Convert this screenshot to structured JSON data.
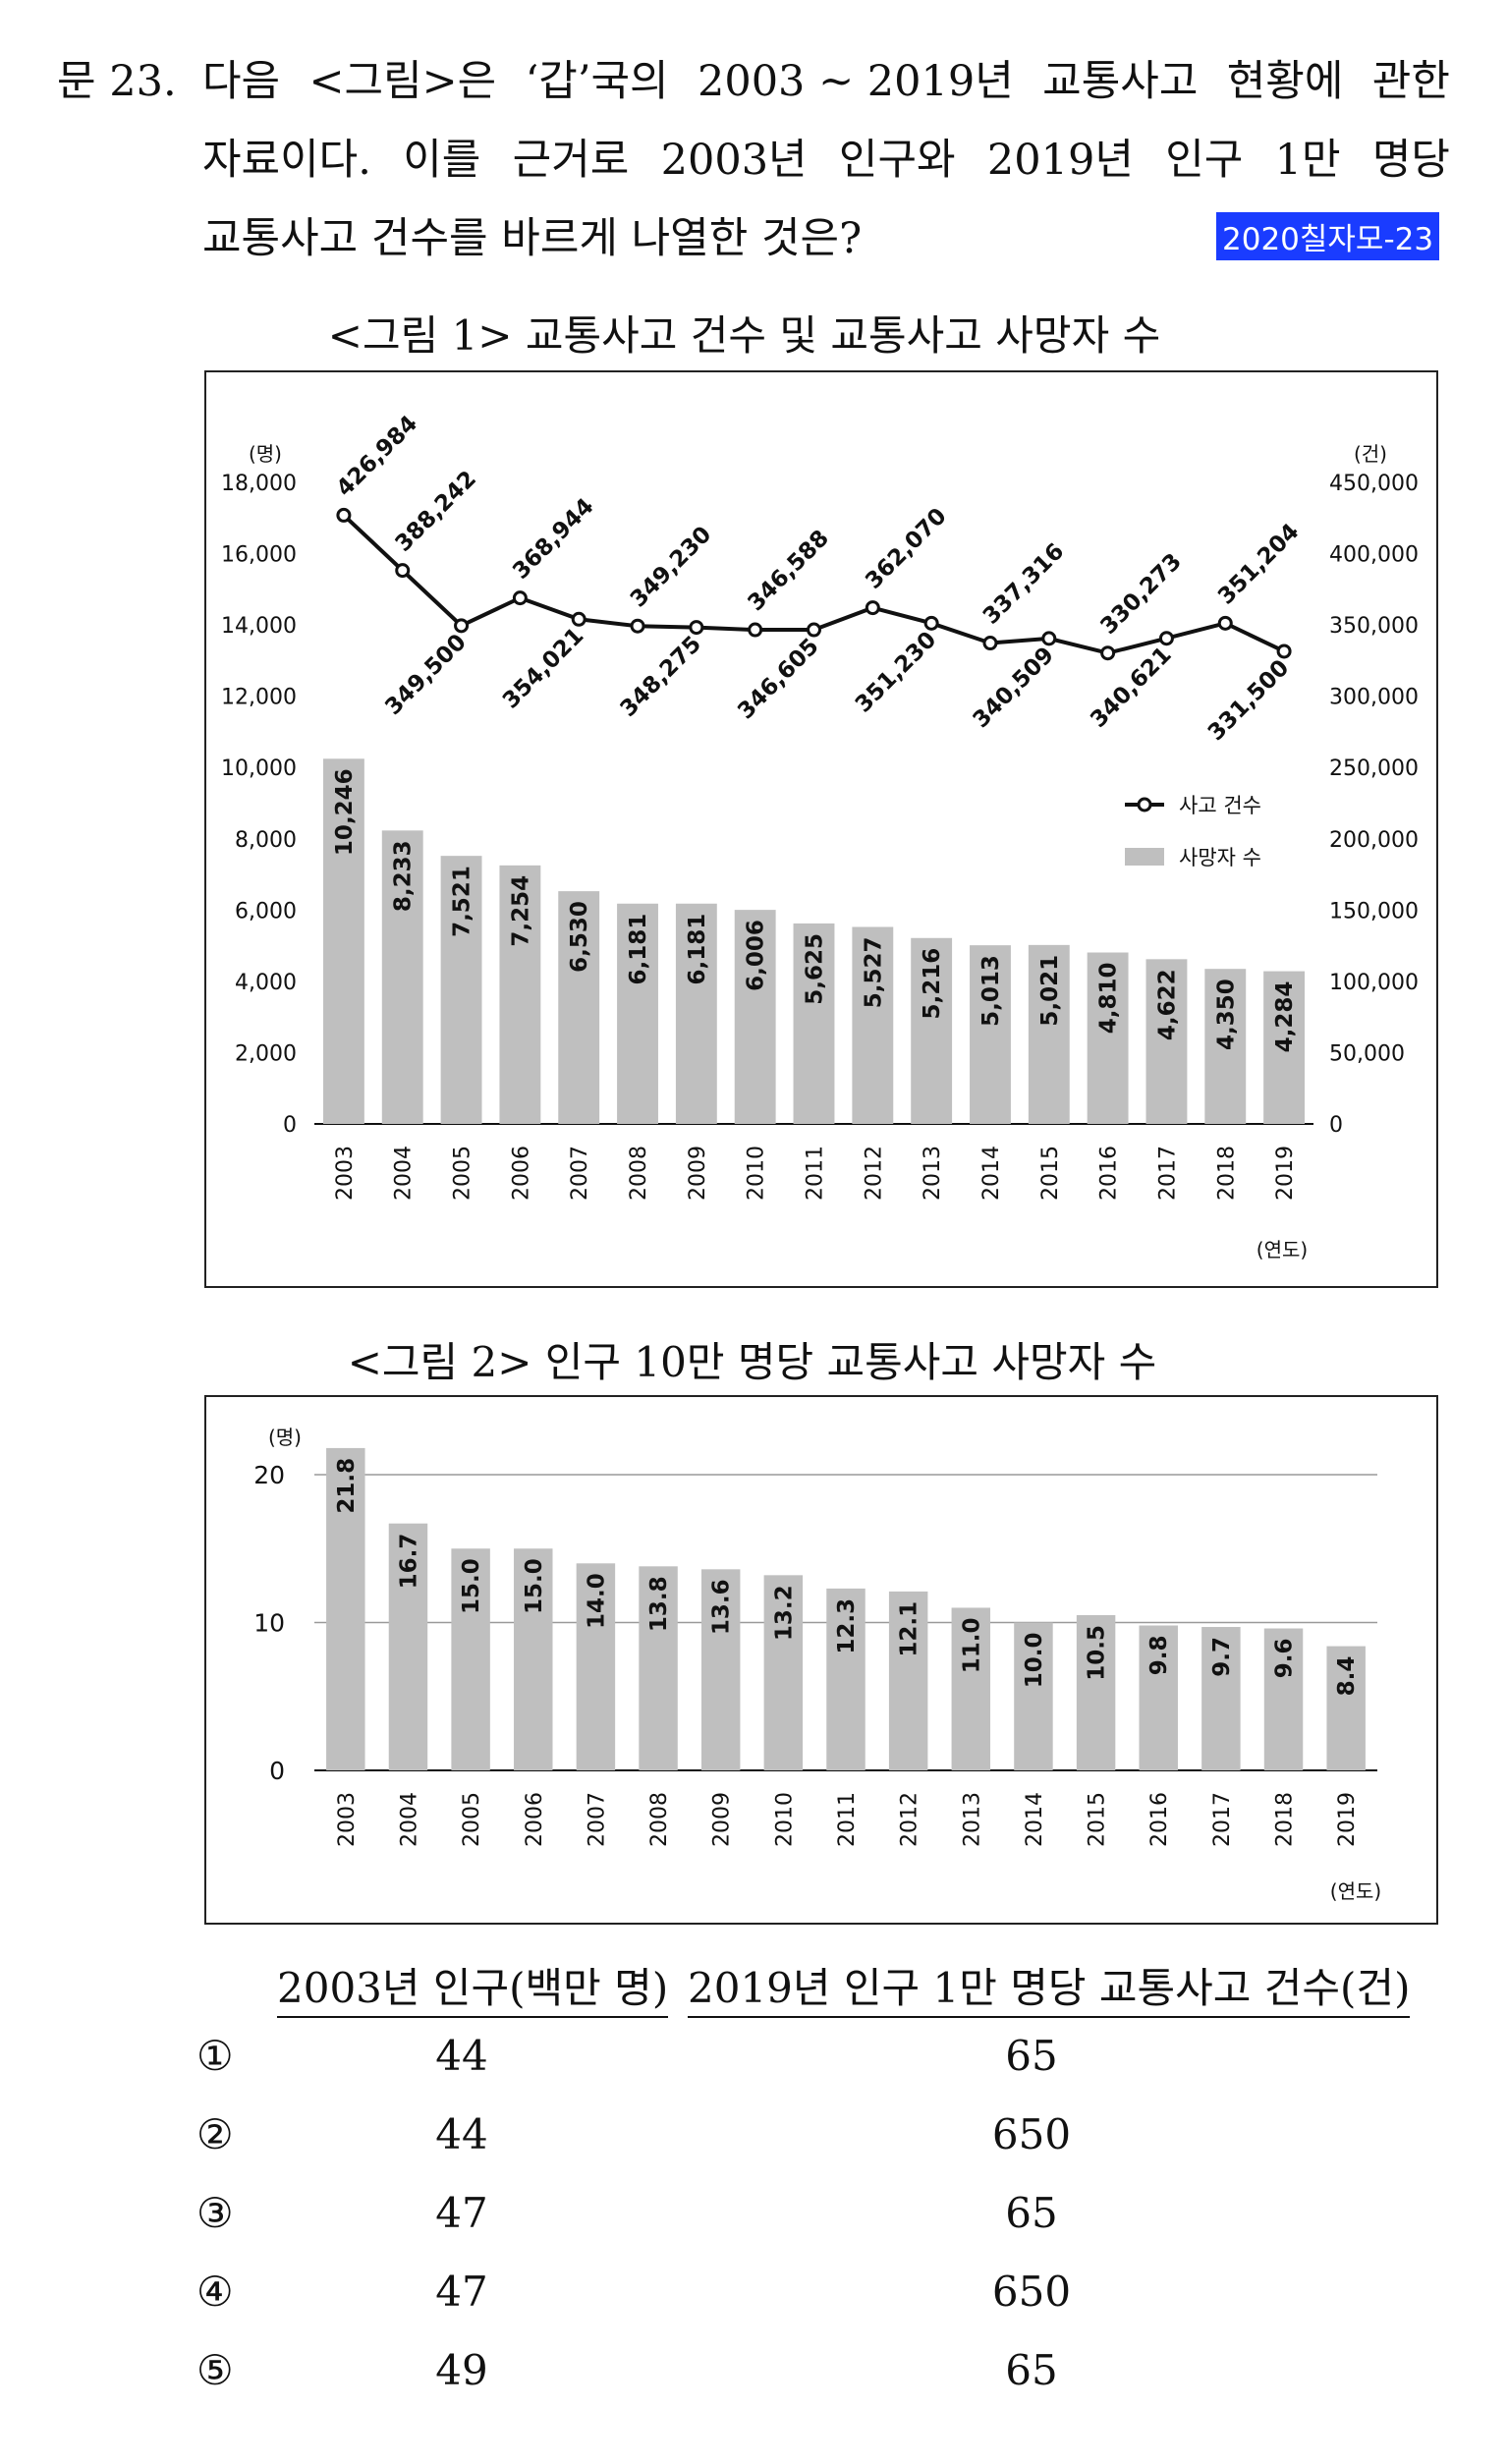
{
  "question": {
    "number": "문 23.",
    "line1": [
      "다음",
      "<그림>은",
      "‘갑’국의",
      "2003 ~ 2019년",
      "교통사고",
      "현황에",
      "관한"
    ],
    "line2": [
      "자료이다.",
      "이를",
      "근거로",
      "2003년",
      "인구와",
      "2019년",
      "인구",
      "1만",
      "명당"
    ],
    "line3": "교통사고 건수를 바르게 나열한 것은?",
    "tag": "2020칠자모-23"
  },
  "figure1": {
    "title": "<그림 1> 교통사고 건수 및 교통사고 사망자 수"
  },
  "figure2": {
    "title": "<그림 2> 인구 10만 명당 교통사고 사망자 수"
  },
  "chart_data": [
    {
      "type": "bar+line",
      "title": "<그림 1> 교통사고 건수 및 교통사고 사망자 수",
      "xlabel": "(연도)",
      "ylabel_left": "(명)",
      "ylabel_right": "(건)",
      "categories": [
        "2003",
        "2004",
        "2005",
        "2006",
        "2007",
        "2008",
        "2009",
        "2010",
        "2011",
        "2012",
        "2013",
        "2014",
        "2015",
        "2016",
        "2017",
        "2018",
        "2019"
      ],
      "left_ticks": [
        "0",
        "2,000",
        "4,000",
        "6,000",
        "8,000",
        "10,000",
        "12,000",
        "14,000",
        "16,000",
        "18,000"
      ],
      "right_ticks": [
        "0",
        "50,000",
        "100,000",
        "150,000",
        "200,000",
        "250,000",
        "300,000",
        "350,000",
        "400,000",
        "450,000"
      ],
      "ylim_left": [
        0,
        18000
      ],
      "ylim_right": [
        0,
        450000
      ],
      "series": [
        {
          "name": "사망자 수",
          "type": "bar",
          "axis": "left",
          "color": "#bfbfbf",
          "values": [
            10246,
            8233,
            7521,
            7254,
            6530,
            6181,
            6181,
            6006,
            5625,
            5527,
            5216,
            5013,
            5021,
            4810,
            4622,
            4350,
            4284
          ],
          "labels": [
            "10,246",
            "8,233",
            "7,521",
            "7,254",
            "6,530",
            "6,181",
            "6,181",
            "6,006",
            "5,625",
            "5,527",
            "5,216",
            "5,013",
            "5,021",
            "4,810",
            "4,622",
            "4,350",
            "4,284"
          ]
        },
        {
          "name": "사고 건수",
          "type": "line",
          "axis": "right",
          "color": "#111111",
          "values": [
            426984,
            388242,
            349500,
            368944,
            354021,
            349230,
            348275,
            346588,
            346605,
            362070,
            351230,
            337316,
            340509,
            330273,
            340621,
            351204,
            331500
          ],
          "labels": [
            "426,984",
            "388,242",
            "349,500",
            "368,944",
            "354,021",
            "349,230",
            "348,275",
            "346,588",
            "346,605",
            "362,070",
            "351,230",
            "337,316",
            "340,509",
            "330,273",
            "340,621",
            "351,204",
            "331,500"
          ],
          "label_side": [
            "above",
            "above",
            "below",
            "above",
            "below",
            "above",
            "below",
            "above",
            "below",
            "above",
            "below",
            "above",
            "below",
            "above",
            "below",
            "above",
            "below"
          ]
        }
      ],
      "legend": [
        "사고 건수",
        "사망자 수"
      ],
      "legend_position": "right-middle",
      "grid": false
    },
    {
      "type": "bar",
      "title": "<그림 2> 인구 10만 명당 교통사고 사망자 수",
      "xlabel": "(연도)",
      "ylabel": "(명)",
      "categories": [
        "2003",
        "2004",
        "2005",
        "2006",
        "2007",
        "2008",
        "2009",
        "2010",
        "2011",
        "2012",
        "2013",
        "2014",
        "2015",
        "2016",
        "2017",
        "2018",
        "2019"
      ],
      "y_ticks": [
        "0",
        "10",
        "20"
      ],
      "ylim": [
        0,
        20
      ],
      "grid": true,
      "series": [
        {
          "name": "",
          "color": "#bfbfbf",
          "values": [
            21.8,
            16.7,
            15.0,
            15.0,
            14.0,
            13.8,
            13.6,
            13.2,
            12.3,
            12.1,
            11.0,
            10.0,
            10.5,
            9.8,
            9.7,
            9.6,
            8.4
          ],
          "labels": [
            "21.8",
            "16.7",
            "15.0",
            "15.0",
            "14.0",
            "13.8",
            "13.6",
            "13.2",
            "12.3",
            "12.1",
            "11.0",
            "10.0",
            "10.5",
            "9.8",
            "9.7",
            "9.6",
            "8.4"
          ]
        }
      ]
    }
  ],
  "options": {
    "header_col1": "2003년 인구(백만 명)",
    "header_col2": "2019년 인구 1만 명당 교통사고 건수(건)",
    "rows": [
      {
        "mark": "①",
        "c1": "44",
        "c2": "65"
      },
      {
        "mark": "②",
        "c1": "44",
        "c2": "650"
      },
      {
        "mark": "③",
        "c1": "47",
        "c2": "65"
      },
      {
        "mark": "④",
        "c1": "47",
        "c2": "650"
      },
      {
        "mark": "⑤",
        "c1": "49",
        "c2": "65"
      }
    ]
  }
}
